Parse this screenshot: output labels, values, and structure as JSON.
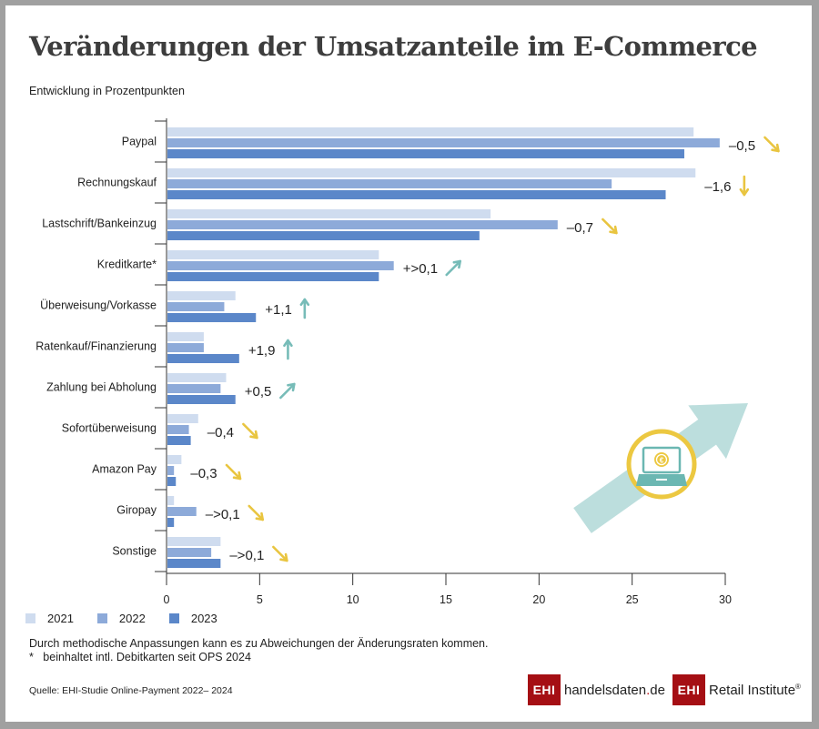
{
  "header": {
    "title": "Veränderungen der Umsatzanteile im E-Commerce",
    "subtitle": "Entwicklung in Prozentpunkten"
  },
  "colors": {
    "y2021": "#cfdcef",
    "y2022": "#8daad9",
    "y2023": "#5b87c9",
    "down": "#e9c540",
    "up": "#77bcb8",
    "axis": "#333333",
    "brand_red": "#a50f14"
  },
  "chart_data": {
    "type": "bar",
    "orientation": "horizontal",
    "title": "Veränderungen der Umsatzanteile im E-Commerce",
    "subtitle": "Entwicklung in Prozentpunkten",
    "xlabel": "",
    "ylabel": "",
    "xlim": [
      0,
      30
    ],
    "xticks": [
      0,
      5,
      10,
      15,
      20,
      25,
      30
    ],
    "grid": false,
    "legend_position": "bottom-left",
    "categories": [
      "Paypal",
      "Rechnungskauf",
      "Lastschrift/Bankeinzug",
      "Kreditkarte*",
      "Überweisung/Vorkasse",
      "Ratenkauf/Finanzierung",
      "Zahlung bei Abholung",
      "Sofortüberweisung",
      "Amazon Pay",
      "Giropay",
      "Sonstige"
    ],
    "series": [
      {
        "name": "2021",
        "values": [
          28.3,
          28.4,
          17.4,
          11.4,
          3.7,
          2.0,
          3.2,
          1.7,
          0.8,
          0.4,
          2.9
        ]
      },
      {
        "name": "2022",
        "values": [
          29.7,
          23.9,
          21.0,
          12.2,
          3.1,
          2.0,
          2.9,
          1.2,
          0.4,
          1.6,
          2.4
        ]
      },
      {
        "name": "2023",
        "values": [
          27.8,
          26.8,
          16.8,
          11.4,
          4.8,
          3.9,
          3.7,
          1.3,
          0.5,
          0.4,
          2.9
        ]
      }
    ],
    "annotations": [
      {
        "category": "Paypal",
        "label": "–0,5",
        "trend": "down-right"
      },
      {
        "category": "Rechnungskauf",
        "label": "–1,6",
        "trend": "down"
      },
      {
        "category": "Lastschrift/Bankeinzug",
        "label": "–0,7",
        "trend": "down-right"
      },
      {
        "category": "Kreditkarte*",
        "label": "+>0,1",
        "trend": "up-right"
      },
      {
        "category": "Überweisung/Vorkasse",
        "label": "+1,1",
        "trend": "up"
      },
      {
        "category": "Ratenkauf/Finanzierung",
        "label": "+1,9",
        "trend": "up"
      },
      {
        "category": "Zahlung bei Abholung",
        "label": "+0,5",
        "trend": "up-right"
      },
      {
        "category": "Sofortüberweisung",
        "label": "–0,4",
        "trend": "down-right"
      },
      {
        "category": "Amazon Pay",
        "label": "–0,3",
        "trend": "down-right"
      },
      {
        "category": "Giropay",
        "label": "–>0,1",
        "trend": "down-right"
      },
      {
        "category": "Sonstige",
        "label": "–>0,1",
        "trend": "down-right"
      }
    ]
  },
  "legend": [
    {
      "label": "2021"
    },
    {
      "label": "2022"
    },
    {
      "label": "2023"
    }
  ],
  "footer": {
    "note": "Durch methodische Anpassungen kann es zu Abweichungen der Änderungsraten kommen.",
    "footnote_marker": "*",
    "footnote": "beinhaltet intl. Debitkarten seit OPS 2024",
    "source": "Quelle: EHI-Studie Online-Payment 2022– 2024"
  },
  "logos": {
    "ehi": "EHI",
    "handelsdaten_a": "handelsdaten",
    "handelsdaten_dot": ".",
    "handelsdaten_b": "de",
    "retail": "Retail Institute",
    "reg": "®"
  },
  "illustration": {
    "icon": "laptop-euro-icon",
    "currency_symbol": "€"
  }
}
